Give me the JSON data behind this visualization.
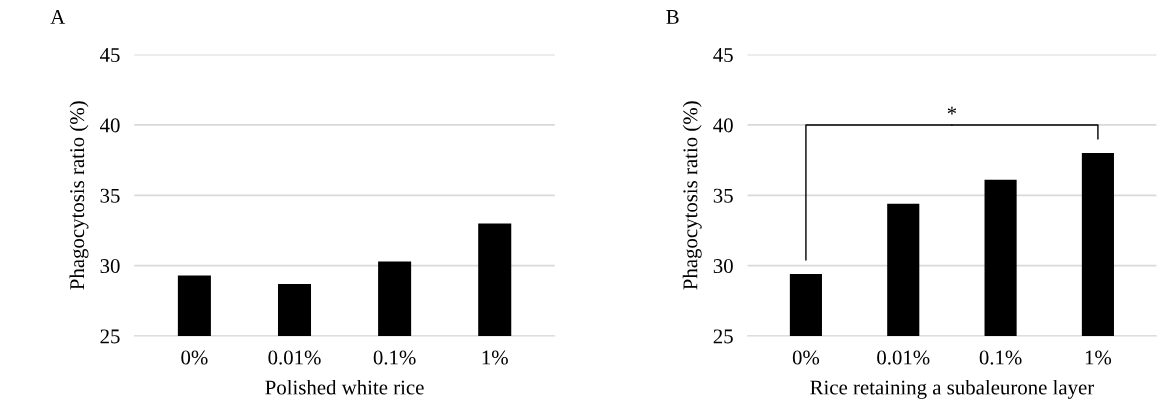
{
  "chart_data": [
    {
      "type": "bar",
      "title": "A",
      "categories": [
        "0%",
        "0.01%",
        "0.1%",
        "1%"
      ],
      "values": [
        29.3,
        28.7,
        30.3,
        33.0
      ],
      "color": "#000000",
      "xlabel": "Polished white rice",
      "ylabel": "Phagocytosis ratio (%)",
      "ylim": [
        25,
        45
      ],
      "yticks": [
        25,
        30,
        35,
        40,
        45
      ],
      "grid": "y"
    },
    {
      "type": "bar",
      "title": "B",
      "categories": [
        "0%",
        "0.01%",
        "0.1%",
        "1%"
      ],
      "values": [
        29.4,
        34.4,
        36.1,
        38.0
      ],
      "color": "#000000",
      "xlabel": "Rice retaining a subaleurone layer",
      "ylabel": "Phagocytosis ratio (%)",
      "ylim": [
        25,
        45
      ],
      "yticks": [
        25,
        30,
        35,
        40,
        45
      ],
      "grid": "y",
      "annotations": [
        "*"
      ]
    }
  ]
}
